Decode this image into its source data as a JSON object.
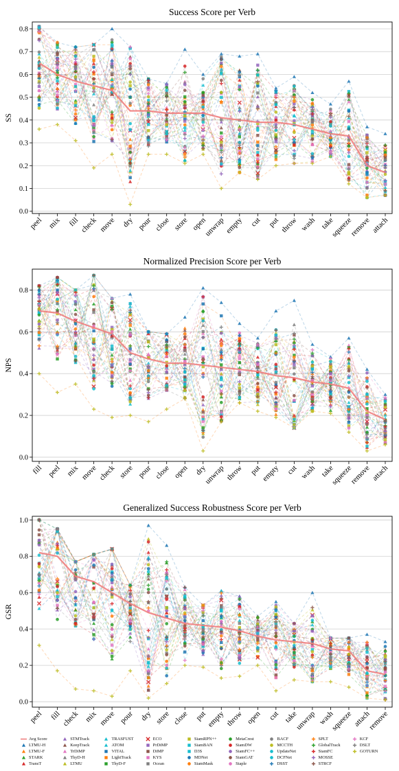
{
  "colors": {
    "avg": "#f08080",
    "grid": "#cfcfcf",
    "palette": [
      "#1f77b4",
      "#ff7f0e",
      "#2ca02c",
      "#d62728",
      "#9467bd",
      "#8c564b",
      "#e377c2",
      "#7f7f7f",
      "#bcbd22",
      "#17becf"
    ]
  },
  "legend": {
    "items": [
      {
        "name": "Avg Score",
        "marker": "line",
        "color": "#f08080"
      },
      {
        "name": "LTMU-H",
        "marker": "triangle",
        "color": "#1f77b4"
      },
      {
        "name": "LTMU-F",
        "marker": "triangle",
        "color": "#ff7f0e"
      },
      {
        "name": "STARK",
        "marker": "triangle",
        "color": "#2ca02c"
      },
      {
        "name": "TransT",
        "marker": "triangle",
        "color": "#d62728"
      },
      {
        "name": "STMTrack",
        "marker": "triangle",
        "color": "#9467bd"
      },
      {
        "name": "KeepTrack",
        "marker": "triangle",
        "color": "#8c564b"
      },
      {
        "name": "TrDiMP",
        "marker": "triangle",
        "color": "#e377c2"
      },
      {
        "name": "ThyD-H",
        "marker": "triangle",
        "color": "#7f7f7f"
      },
      {
        "name": "LTMU",
        "marker": "triangle",
        "color": "#bcbd22"
      },
      {
        "name": "TRASFUST",
        "marker": "triangle",
        "color": "#17becf"
      },
      {
        "name": "ATOM",
        "marker": "triangle",
        "color": "#17becf"
      },
      {
        "name": "VITAL",
        "marker": "square",
        "color": "#1f77b4"
      },
      {
        "name": "LightTrack",
        "marker": "square",
        "color": "#ff7f0e"
      },
      {
        "name": "ThyD-F",
        "marker": "square",
        "color": "#2ca02c"
      },
      {
        "name": "ECO",
        "marker": "x",
        "color": "#d62728"
      },
      {
        "name": "PrDiMP",
        "marker": "square",
        "color": "#9467bd"
      },
      {
        "name": "DiMP",
        "marker": "square",
        "color": "#8c564b"
      },
      {
        "name": "KYS",
        "marker": "square",
        "color": "#e377c2"
      },
      {
        "name": "Ocean",
        "marker": "square",
        "color": "#7f7f7f"
      },
      {
        "name": "SiamRPN++",
        "marker": "square",
        "color": "#bcbd22"
      },
      {
        "name": "SiamBAN",
        "marker": "square",
        "color": "#17becf"
      },
      {
        "name": "D3S",
        "marker": "square",
        "color": "#17becf"
      },
      {
        "name": "MDNet",
        "marker": "circle",
        "color": "#1f77b4"
      },
      {
        "name": "SiamMask",
        "marker": "circle",
        "color": "#ff7f0e"
      },
      {
        "name": "MetaCrest",
        "marker": "circle",
        "color": "#2ca02c"
      },
      {
        "name": "SiamDW",
        "marker": "circle",
        "color": "#d62728"
      },
      {
        "name": "SiamFC++",
        "marker": "circle",
        "color": "#9467bd"
      },
      {
        "name": "SiamGAT",
        "marker": "circle",
        "color": "#8c564b"
      },
      {
        "name": "Staple",
        "marker": "circle",
        "color": "#e377c2"
      },
      {
        "name": "BACF",
        "marker": "circle",
        "color": "#7f7f7f"
      },
      {
        "name": "MCCTH",
        "marker": "circle",
        "color": "#bcbd22"
      },
      {
        "name": "UpdateNet",
        "marker": "circle",
        "color": "#17becf"
      },
      {
        "name": "DCFNet",
        "marker": "circle",
        "color": "#17becf"
      },
      {
        "name": "DSST",
        "marker": "plus",
        "color": "#1f77b4"
      },
      {
        "name": "SPLT",
        "marker": "plus",
        "color": "#ff7f0e"
      },
      {
        "name": "GlobalTrack",
        "marker": "plus",
        "color": "#2ca02c"
      },
      {
        "name": "SiamFC",
        "marker": "plus",
        "color": "#d62728"
      },
      {
        "name": "MOSSE",
        "marker": "plus",
        "color": "#9467bd"
      },
      {
        "name": "STRCF",
        "marker": "plus",
        "color": "#8c564b"
      },
      {
        "name": "KCF",
        "marker": "plus",
        "color": "#e377c2"
      },
      {
        "name": "DSLT",
        "marker": "plus",
        "color": "#7f7f7f"
      },
      {
        "name": "GOTURN",
        "marker": "plus",
        "color": "#bcbd22"
      }
    ]
  },
  "chart_data": [
    {
      "type": "line",
      "title": "Success Score per Verb",
      "ylabel": "SS",
      "xlabel": "",
      "ylim": [
        -0.01,
        0.83
      ],
      "yticks": [
        0.0,
        0.1,
        0.2,
        0.3,
        0.4,
        0.5,
        0.6,
        0.7,
        0.8
      ],
      "grid": true,
      "categories": [
        "peel",
        "mix",
        "fill",
        "check",
        "move",
        "dry",
        "pour",
        "close",
        "store",
        "open",
        "unwrap",
        "empty",
        "cut",
        "put",
        "throw",
        "wash",
        "take",
        "squeeze",
        "remove",
        "attach"
      ],
      "avg": [
        0.65,
        0.6,
        0.57,
        0.55,
        0.53,
        0.44,
        0.44,
        0.43,
        0.43,
        0.43,
        0.41,
        0.4,
        0.39,
        0.39,
        0.38,
        0.36,
        0.34,
        0.33,
        0.2,
        0.17
      ],
      "spread_low": [
        0.36,
        0.38,
        0.31,
        0.19,
        0.25,
        0.03,
        0.25,
        0.25,
        0.21,
        0.25,
        0.1,
        0.17,
        0.14,
        0.2,
        0.21,
        0.21,
        0.24,
        0.12,
        0.06,
        0.07
      ],
      "spread_high": [
        0.81,
        0.74,
        0.72,
        0.73,
        0.8,
        0.72,
        0.58,
        0.56,
        0.71,
        0.6,
        0.69,
        0.68,
        0.69,
        0.54,
        0.59,
        0.52,
        0.47,
        0.57,
        0.37,
        0.34
      ]
    },
    {
      "type": "line",
      "title": "Normalized Precision Score per Verb",
      "ylabel": "NPS",
      "xlabel": "",
      "ylim": [
        -0.02,
        0.9
      ],
      "yticks": [
        0.0,
        0.2,
        0.4,
        0.6,
        0.8
      ],
      "grid": true,
      "categories": [
        "fill",
        "peel",
        "mix",
        "move",
        "check",
        "store",
        "pour",
        "close",
        "open",
        "dry",
        "unwrap",
        "throw",
        "put",
        "empty",
        "cut",
        "wash",
        "take",
        "squeeze",
        "remove",
        "attach"
      ],
      "avg": [
        0.7,
        0.69,
        0.65,
        0.62,
        0.59,
        0.5,
        0.47,
        0.45,
        0.45,
        0.44,
        0.43,
        0.42,
        0.41,
        0.39,
        0.38,
        0.36,
        0.35,
        0.33,
        0.22,
        0.18
      ],
      "spread_low": [
        0.4,
        0.31,
        0.35,
        0.23,
        0.19,
        0.2,
        0.17,
        0.23,
        0.28,
        0.03,
        0.17,
        0.26,
        0.22,
        0.19,
        0.14,
        0.22,
        0.21,
        0.12,
        0.03,
        0.06
      ],
      "spread_high": [
        0.82,
        0.86,
        0.8,
        0.87,
        0.76,
        0.78,
        0.6,
        0.59,
        0.67,
        0.81,
        0.74,
        0.64,
        0.57,
        0.7,
        0.75,
        0.54,
        0.48,
        0.57,
        0.42,
        0.3
      ]
    },
    {
      "type": "line",
      "title": "Generalized Success Robustness Score per Verb",
      "ylabel": "GSR",
      "xlabel": "",
      "ylim": [
        -0.03,
        1.02
      ],
      "yticks": [
        0.0,
        0.2,
        0.4,
        0.6,
        0.8,
        1.0
      ],
      "grid": true,
      "categories": [
        "peel",
        "fill",
        "check",
        "mix",
        "move",
        "pour",
        "dry",
        "store",
        "close",
        "put",
        "empty",
        "throw",
        "open",
        "cut",
        "take",
        "unwrap",
        "wash",
        "squeeze",
        "attach",
        "remove"
      ],
      "avg": [
        0.82,
        0.8,
        0.69,
        0.66,
        0.6,
        0.54,
        0.49,
        0.46,
        0.43,
        0.42,
        0.41,
        0.39,
        0.36,
        0.34,
        0.33,
        0.32,
        0.29,
        0.28,
        0.17,
        0.15
      ],
      "spread_low": [
        0.31,
        0.17,
        0.07,
        0.06,
        0.03,
        0.17,
        0.02,
        0.1,
        0.2,
        0.19,
        0.13,
        0.14,
        0.2,
        0.06,
        0.12,
        0.11,
        0.11,
        0.08,
        0.02,
        0.01
      ],
      "spread_high": [
        1.0,
        0.95,
        0.77,
        0.81,
        0.84,
        0.64,
        0.97,
        0.86,
        0.63,
        0.53,
        0.61,
        0.58,
        0.47,
        0.55,
        0.43,
        0.6,
        0.35,
        0.35,
        0.37,
        0.33
      ]
    }
  ]
}
